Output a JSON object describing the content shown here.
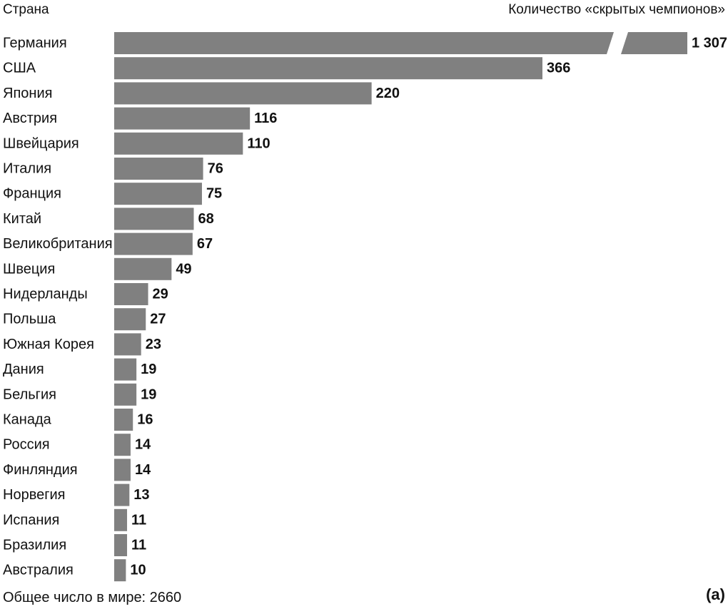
{
  "chart_data": {
    "type": "bar",
    "orientation": "horizontal",
    "category_header": "Страна",
    "value_header": "Количество «скрытых чемпионов»",
    "categories": [
      "Германия",
      "США",
      "Япония",
      "Австрия",
      "Швейцария",
      "Италия",
      "Франция",
      "Китай",
      "Великобритания",
      "Швеция",
      "Нидерланды",
      "Польша",
      "Южная Корея",
      "Дания",
      "Бельгия",
      "Канада",
      "Россия",
      "Финляндия",
      "Норвегия",
      "Испания",
      "Бразилия",
      "Австралия"
    ],
    "values": [
      1307,
      366,
      220,
      116,
      110,
      76,
      75,
      68,
      67,
      49,
      29,
      27,
      23,
      19,
      19,
      16,
      14,
      14,
      13,
      11,
      11,
      10
    ],
    "value_labels": [
      "1 307",
      "366",
      "220",
      "116",
      "110",
      "76",
      "75",
      "68",
      "67",
      "49",
      "29",
      "27",
      "23",
      "19",
      "19",
      "16",
      "14",
      "14",
      "13",
      "11",
      "11",
      "10"
    ],
    "axis_break_category": "Германия",
    "footnote": "Общее число в мире: 2660",
    "panel_label": "(a)",
    "bar_color": "#808080",
    "text_color": "#111111",
    "grid": false,
    "legend": "none"
  }
}
